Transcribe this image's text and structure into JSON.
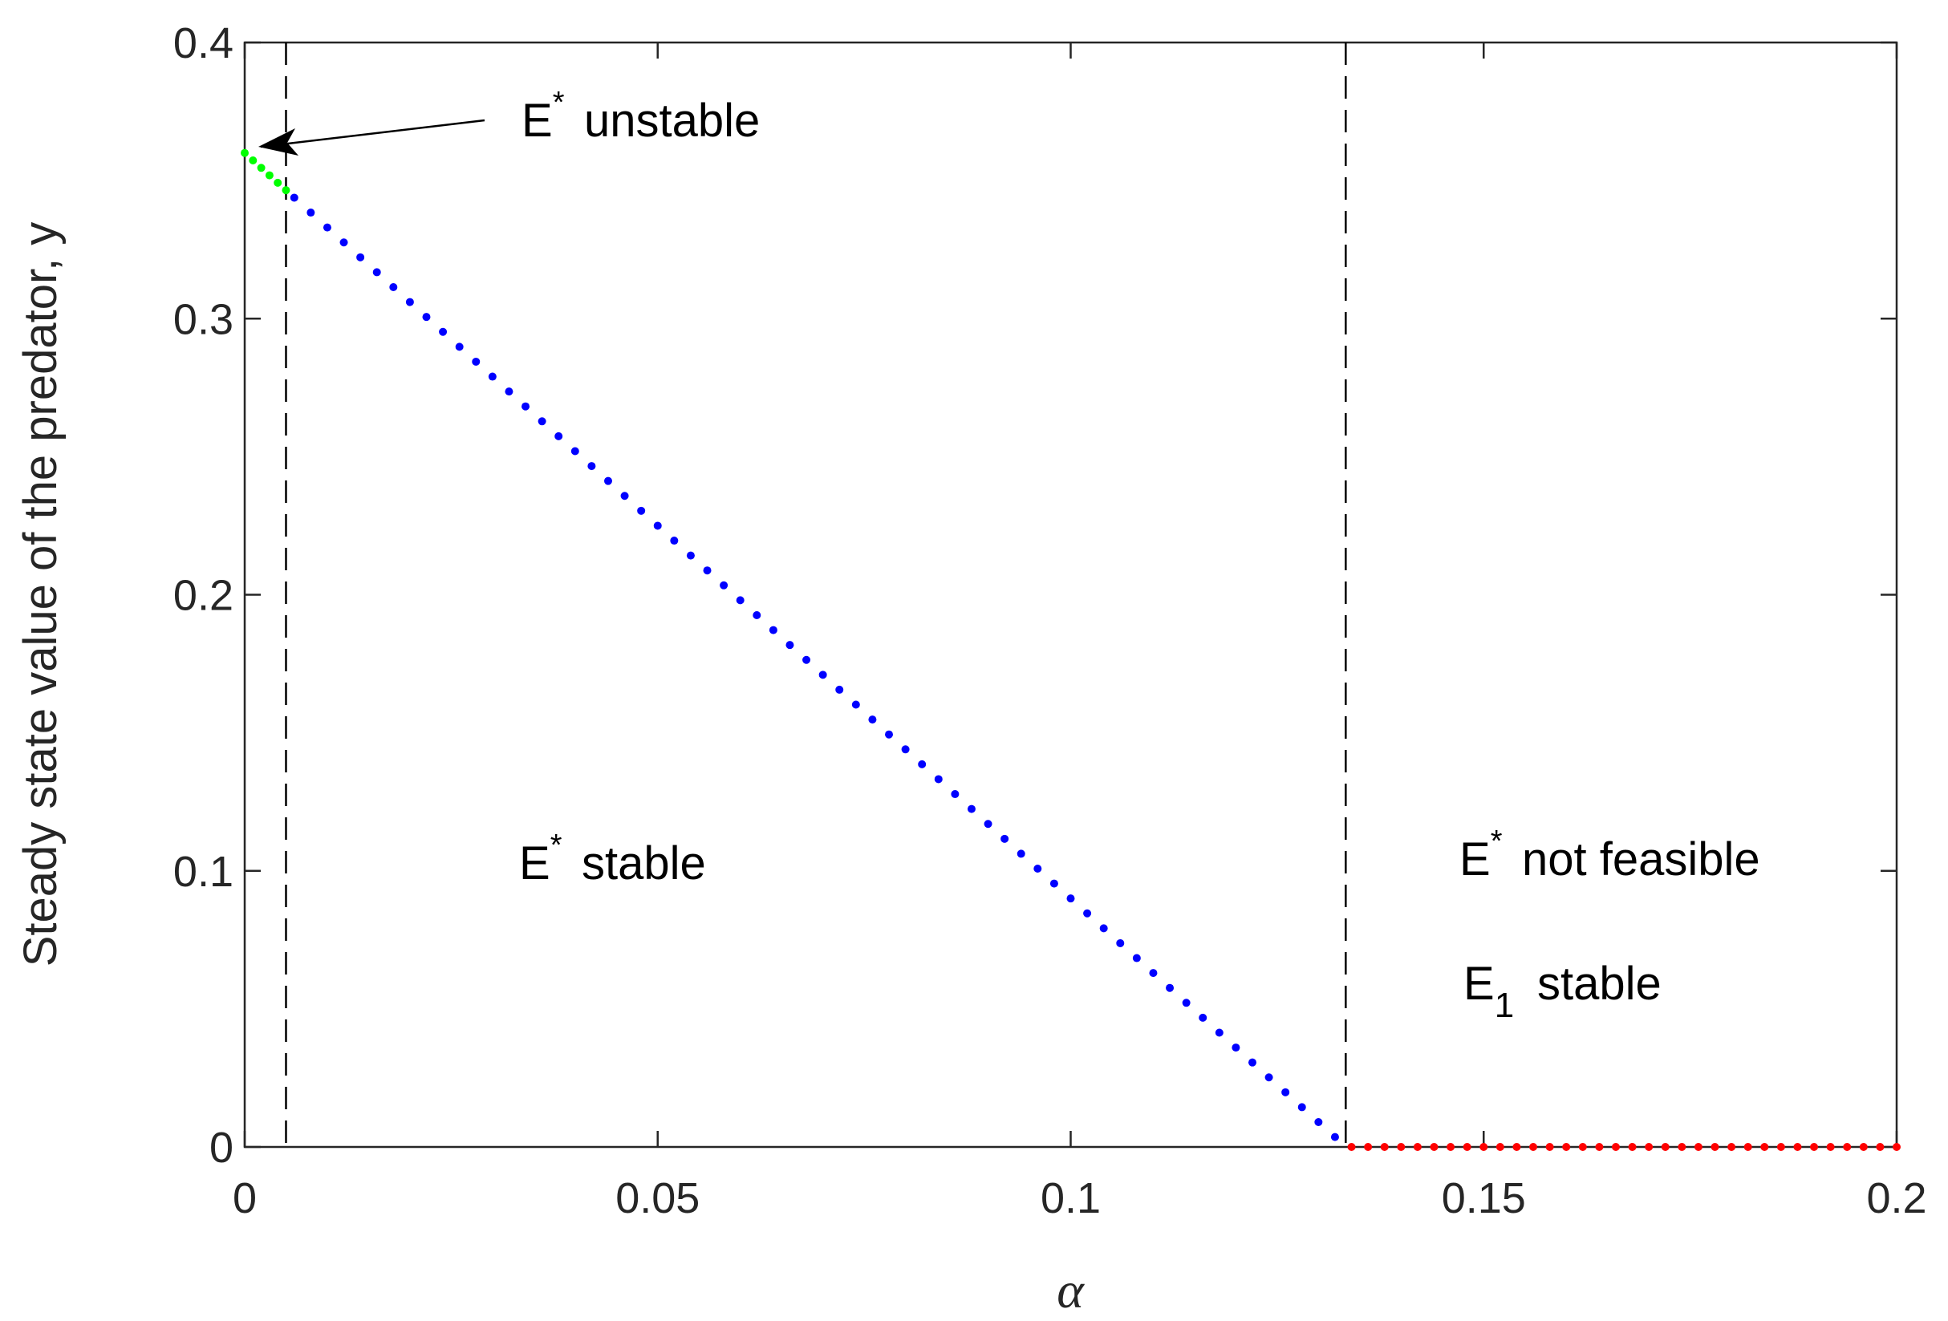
{
  "chart_data": {
    "type": "scatter",
    "xlabel": "α",
    "ylabel": "Steady state value of the predator, y",
    "xlim": [
      0,
      0.2
    ],
    "ylim": [
      0,
      0.4
    ],
    "xticks": [
      0,
      0.05,
      0.1,
      0.15,
      0.2
    ],
    "yticks": [
      0,
      0.1,
      0.2,
      0.3,
      0.4
    ],
    "vlines": [
      0.005,
      0.1333
    ],
    "series": [
      {
        "color": "#00ff00",
        "x": [
          0,
          0.001,
          0.002,
          0.003,
          0.004,
          0.005
        ],
        "values": [
          0.36,
          0.3573,
          0.3546,
          0.3519,
          0.3492,
          0.3465
        ]
      },
      {
        "color": "#0000ff",
        "x": [
          0.006,
          0.008,
          0.01,
          0.012,
          0.014,
          0.016,
          0.018,
          0.02,
          0.022,
          0.024,
          0.026,
          0.028,
          0.03,
          0.032,
          0.034,
          0.036,
          0.038,
          0.04,
          0.042,
          0.044,
          0.046,
          0.048,
          0.05,
          0.052,
          0.054,
          0.056,
          0.058,
          0.06,
          0.062,
          0.064,
          0.066,
          0.068,
          0.07,
          0.072,
          0.074,
          0.076,
          0.078,
          0.08,
          0.082,
          0.084,
          0.086,
          0.088,
          0.09,
          0.092,
          0.094,
          0.096,
          0.098,
          0.1,
          0.102,
          0.104,
          0.106,
          0.108,
          0.11,
          0.112,
          0.114,
          0.116,
          0.118,
          0.12,
          0.122,
          0.124,
          0.126,
          0.128,
          0.13,
          0.132
        ],
        "values": [
          0.3438,
          0.3384,
          0.333,
          0.3276,
          0.3222,
          0.3168,
          0.3114,
          0.306,
          0.3006,
          0.2952,
          0.2898,
          0.2844,
          0.279,
          0.2736,
          0.2682,
          0.2628,
          0.2574,
          0.252,
          0.2466,
          0.2412,
          0.2358,
          0.2304,
          0.225,
          0.2196,
          0.2142,
          0.2088,
          0.2034,
          0.198,
          0.1926,
          0.1872,
          0.1818,
          0.1764,
          0.171,
          0.1656,
          0.1602,
          0.1548,
          0.1494,
          0.144,
          0.1386,
          0.1332,
          0.1278,
          0.1224,
          0.117,
          0.1116,
          0.1062,
          0.1008,
          0.0954,
          0.09,
          0.0846,
          0.0792,
          0.0738,
          0.0684,
          0.063,
          0.0576,
          0.0522,
          0.0468,
          0.0414,
          0.036,
          0.0306,
          0.0252,
          0.0198,
          0.0144,
          0.009,
          0.0036
        ]
      },
      {
        "color": "#ff0000",
        "x": [
          0.134,
          0.136,
          0.138,
          0.14,
          0.142,
          0.144,
          0.146,
          0.148,
          0.15,
          0.152,
          0.154,
          0.156,
          0.158,
          0.16,
          0.162,
          0.164,
          0.166,
          0.168,
          0.17,
          0.172,
          0.174,
          0.176,
          0.178,
          0.18,
          0.182,
          0.184,
          0.186,
          0.188,
          0.19,
          0.192,
          0.194,
          0.196,
          0.198,
          0.2
        ],
        "values": [
          0,
          0,
          0,
          0,
          0,
          0,
          0,
          0,
          0,
          0,
          0,
          0,
          0,
          0,
          0,
          0,
          0,
          0,
          0,
          0,
          0,
          0,
          0,
          0,
          0,
          0,
          0,
          0,
          0,
          0,
          0,
          0,
          0,
          0
        ]
      }
    ],
    "annotations": [
      {
        "main": "E",
        "sup": "*",
        "text": "unstable"
      },
      {
        "main": "E",
        "sup": "*",
        "text": "stable"
      },
      {
        "main": "E",
        "sup": "*",
        "text": "not feasible"
      },
      {
        "main": "E",
        "sub": "1",
        "text": "stable"
      }
    ]
  }
}
